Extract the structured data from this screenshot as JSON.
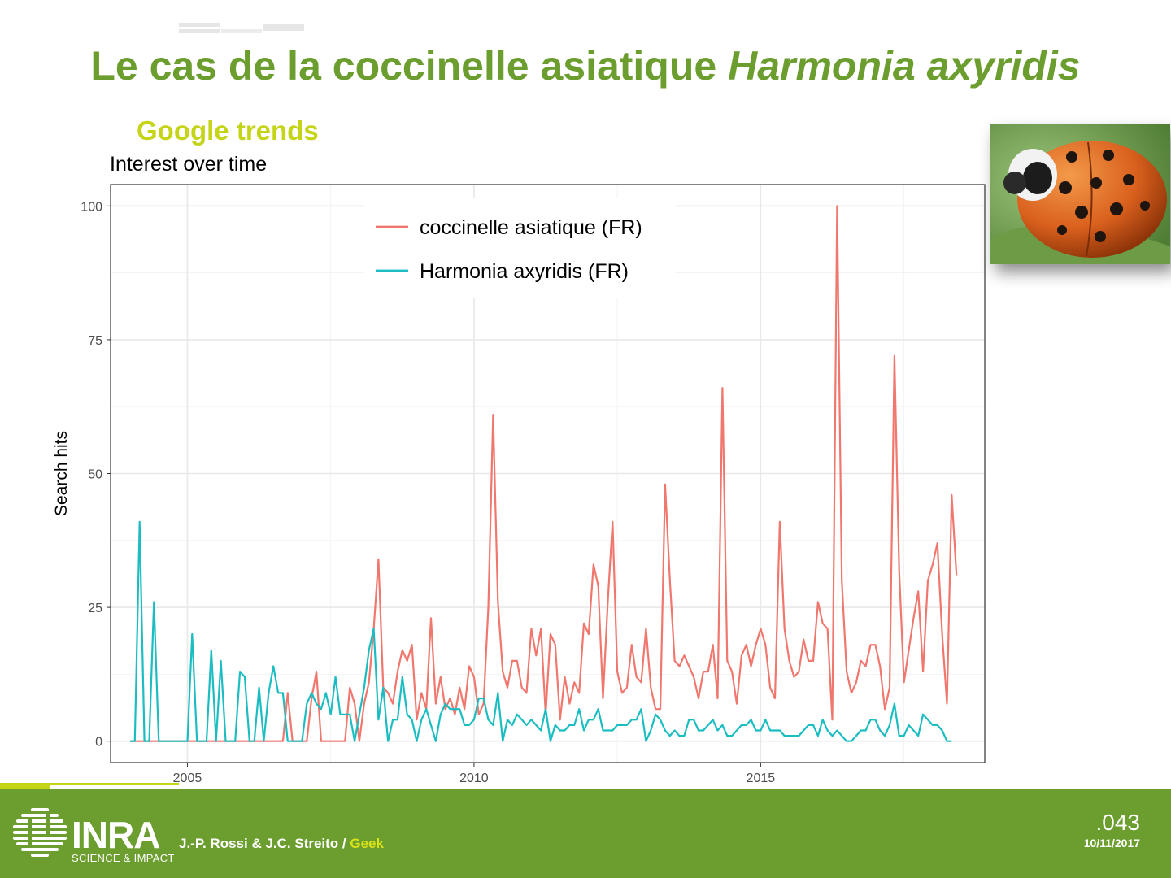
{
  "slide": {
    "title_main": "Le cas de la coccinelle asiatique ",
    "title_italic": "Harmonia axyridis",
    "subtitle": "Google trends"
  },
  "colors": {
    "title": "#6c9d2f",
    "subtitle": "#c5d416",
    "footer": "#6c9d2f",
    "series_coccinelle": "#f0776d",
    "series_harmonia": "#1cbdc2"
  },
  "footer": {
    "logo_text": "INRA",
    "logo_sub": "SCIENCE & IMPACT",
    "credits_prefix": "J.-P. Rossi & J.C. Streito / ",
    "credits_highlight": "Geek",
    "page_number": ".043",
    "date": "10/11/2017"
  },
  "photo": {
    "icon": "ladybird-photo"
  },
  "chart_data": {
    "type": "line",
    "title": "Interest over time",
    "xlabel": "",
    "ylabel": "Search hits",
    "xlim": [
      2003.66,
      2018.91
    ],
    "ylim": [
      -4,
      104
    ],
    "x_ticks": [
      2005,
      2010,
      2015
    ],
    "y_ticks": [
      0,
      25,
      50,
      75,
      100
    ],
    "x_start": 2004.0,
    "x_step_months": 1,
    "grid": true,
    "legend": "top-center",
    "series": [
      {
        "name": "coccinelle asiatique (FR)",
        "color": "#f0776d",
        "values": [
          0,
          0,
          0,
          0,
          0,
          0,
          0,
          0,
          0,
          0,
          0,
          0,
          0,
          0,
          0,
          0,
          0,
          0,
          0,
          0,
          0,
          0,
          0,
          0,
          0,
          0,
          0,
          0,
          0,
          0,
          0,
          0,
          0,
          9,
          0,
          0,
          0,
          0,
          8,
          13,
          0,
          0,
          0,
          0,
          0,
          0,
          10,
          7,
          0,
          7,
          11,
          21,
          34,
          10,
          9,
          7,
          13,
          17,
          15,
          18,
          4,
          9,
          6,
          23,
          7,
          12,
          6,
          8,
          5,
          10,
          6,
          14,
          12,
          5,
          7,
          25,
          61,
          26,
          13,
          10,
          15,
          15,
          10,
          9,
          21,
          16,
          21,
          5,
          20,
          18,
          4,
          12,
          7,
          11,
          9,
          22,
          20,
          33,
          29,
          8,
          26,
          41,
          13,
          9,
          10,
          18,
          12,
          11,
          21,
          10,
          6,
          6,
          48,
          30,
          15,
          14,
          16,
          14,
          12,
          8,
          13,
          13,
          18,
          8,
          66,
          15,
          13,
          7,
          16,
          18,
          14,
          18,
          21,
          18,
          10,
          8,
          41,
          21,
          15,
          12,
          13,
          19,
          15,
          15,
          26,
          22,
          21,
          4,
          100,
          30,
          13,
          9,
          11,
          15,
          14,
          18,
          18,
          14,
          6,
          10,
          72,
          32,
          11,
          17,
          23,
          28,
          13,
          30,
          33,
          37,
          20,
          7,
          46,
          31
        ]
      },
      {
        "name": "Harmonia axyridis (FR)",
        "color": "#1cbdc2",
        "values": [
          0,
          0,
          41,
          0,
          0,
          26,
          0,
          0,
          0,
          0,
          0,
          0,
          0,
          20,
          0,
          0,
          0,
          17,
          0,
          15,
          0,
          0,
          0,
          13,
          12,
          0,
          0,
          10,
          0,
          9,
          14,
          9,
          9,
          0,
          0,
          0,
          0,
          7,
          9,
          7,
          6,
          9,
          5,
          12,
          5,
          5,
          5,
          0,
          5,
          10,
          17,
          21,
          4,
          10,
          0,
          4,
          4,
          12,
          5,
          4,
          0,
          4,
          6,
          3,
          0,
          5,
          7,
          6,
          6,
          6,
          3,
          3,
          4,
          8,
          8,
          4,
          3,
          9,
          0,
          4,
          3,
          5,
          4,
          3,
          4,
          3,
          2,
          6,
          0,
          3,
          2,
          2,
          3,
          3,
          6,
          2,
          4,
          4,
          6,
          2,
          2,
          2,
          3,
          3,
          3,
          4,
          4,
          6,
          0,
          2,
          5,
          4,
          2,
          1,
          2,
          1,
          1,
          4,
          4,
          2,
          2,
          3,
          4,
          2,
          3,
          1,
          1,
          2,
          3,
          3,
          4,
          2,
          2,
          4,
          2,
          2,
          2,
          1,
          1,
          1,
          1,
          2,
          3,
          3,
          1,
          4,
          2,
          1,
          2,
          1,
          0,
          0,
          1,
          2,
          2,
          4,
          4,
          2,
          1,
          3,
          7,
          1,
          1,
          3,
          2,
          1,
          5,
          4,
          3,
          3,
          2,
          0,
          0
        ]
      }
    ]
  }
}
